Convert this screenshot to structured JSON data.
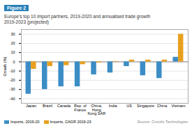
{
  "chart_data": {
    "type": "bar",
    "title": "Figure 2",
    "subtitle": "Europe's top 10 import partners, 2019-2020 and annualised trade growth\n2019-2023 (projected)",
    "annotations": [
      "Source: Coriolis Technologies"
    ],
    "categories": [
      "Japan",
      "Brazil",
      "Canada",
      "Rep. of\nFrance",
      "China,\nHong\nKong SAR",
      "India",
      "US",
      "Singapore",
      "China",
      "Vietnam"
    ],
    "series": [
      {
        "name": "Imports, 2019-20",
        "color": "#3c8dc5",
        "values": [
          -35,
          -30,
          -27,
          -27,
          -14,
          -12,
          -5,
          -15,
          -18,
          5
        ]
      },
      {
        "name": "Imports, CAGR 2019-23",
        "color": "#e8a020",
        "values": [
          -8,
          -5,
          -4,
          -3,
          -1,
          0.5,
          2,
          2,
          2,
          30
        ]
      }
    ],
    "ylabel": "Growth (%)",
    "ylim": [
      -45,
      35
    ],
    "yticks": [
      -40,
      -30,
      -20,
      -10,
      0,
      10,
      20,
      30
    ],
    "grid": true,
    "legend": "bottom"
  }
}
